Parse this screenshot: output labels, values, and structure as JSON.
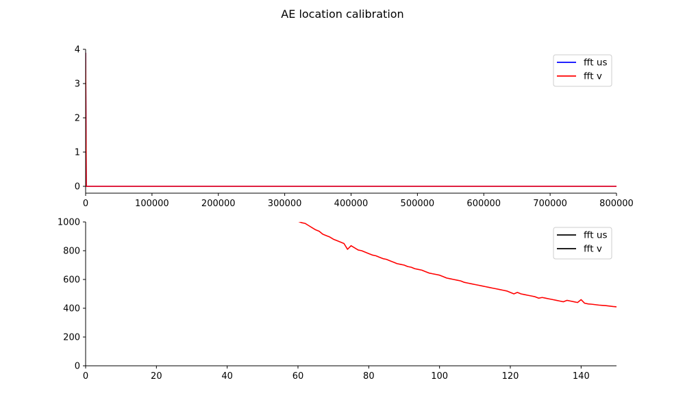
{
  "figure": {
    "title": "AE location calibration"
  },
  "chart_data": [
    {
      "type": "line",
      "xlim": [
        0,
        800000
      ],
      "ylim": [
        -0.2,
        4
      ],
      "xticks": [
        0,
        100000,
        200000,
        300000,
        400000,
        500000,
        600000,
        700000,
        800000
      ],
      "yticks": [
        0,
        1,
        2,
        3,
        4
      ],
      "legend_position": "top-right",
      "series": [
        {
          "name": "fft us",
          "color": "#0000ff",
          "x": [
            0,
            1000,
            800000
          ],
          "y": [
            3.9,
            0.0,
            0.0
          ]
        },
        {
          "name": "fft v",
          "color": "#ff0000",
          "x": [
            0,
            1000,
            800000
          ],
          "y": [
            3.9,
            0.0,
            0.0
          ]
        }
      ]
    },
    {
      "type": "line",
      "xlim": [
        0,
        150
      ],
      "ylim": [
        0,
        1000
      ],
      "xticks": [
        0,
        20,
        40,
        60,
        80,
        100,
        120,
        140
      ],
      "yticks": [
        0,
        200,
        400,
        600,
        800,
        1000
      ],
      "legend_position": "top-right",
      "legend": [
        {
          "name": "fft us",
          "color": "#000000"
        },
        {
          "name": "fft v",
          "color": "#000000"
        }
      ],
      "series": [
        {
          "color": "#ff0000",
          "x": [
            60,
            61,
            62,
            63,
            64,
            65,
            66,
            67,
            68,
            69,
            70,
            71,
            72,
            73,
            74,
            75,
            76,
            77,
            78,
            79,
            80,
            81,
            82,
            83,
            84,
            85,
            86,
            87,
            88,
            89,
            90,
            91,
            92,
            93,
            94,
            95,
            96,
            97,
            98,
            99,
            100,
            101,
            102,
            103,
            104,
            105,
            106,
            107,
            108,
            109,
            110,
            111,
            112,
            113,
            114,
            115,
            116,
            117,
            118,
            119,
            120,
            121,
            122,
            123,
            124,
            125,
            126,
            127,
            128,
            129,
            130,
            131,
            132,
            133,
            134,
            135,
            136,
            137,
            138,
            139,
            140,
            141,
            142,
            143,
            144,
            145,
            146,
            147,
            148,
            149,
            150
          ],
          "y": [
            1005,
            995,
            990,
            975,
            960,
            945,
            935,
            915,
            905,
            895,
            880,
            870,
            860,
            850,
            810,
            835,
            820,
            805,
            800,
            790,
            780,
            770,
            765,
            755,
            745,
            740,
            730,
            720,
            710,
            705,
            700,
            690,
            685,
            675,
            670,
            665,
            655,
            645,
            640,
            635,
            630,
            620,
            610,
            605,
            600,
            595,
            590,
            580,
            575,
            570,
            565,
            560,
            555,
            550,
            545,
            540,
            535,
            530,
            525,
            520,
            510,
            500,
            510,
            500,
            495,
            490,
            485,
            480,
            470,
            475,
            470,
            465,
            460,
            455,
            450,
            445,
            455,
            450,
            445,
            440,
            460,
            435,
            430,
            428,
            425,
            422,
            420,
            418,
            415,
            412,
            410
          ]
        }
      ]
    }
  ]
}
